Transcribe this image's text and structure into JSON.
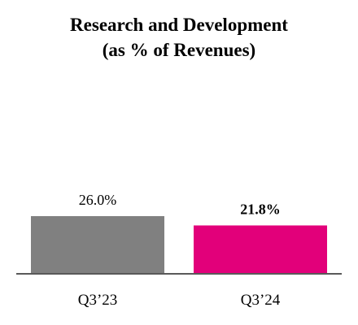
{
  "chart_data": {
    "type": "bar",
    "title": "Research and Development",
    "subtitle": "(as % of Revenues)",
    "categories": [
      "Q3’23",
      "Q3’24"
    ],
    "values": [
      26.0,
      21.8
    ],
    "data_labels": [
      "26.0%",
      "21.8%"
    ],
    "data_label_bold": [
      false,
      true
    ],
    "colors": [
      "#808080",
      "#e2007a"
    ],
    "axis_color": "#595959",
    "ylim": [
      0,
      26.0
    ],
    "grid": false,
    "legend": "none"
  }
}
